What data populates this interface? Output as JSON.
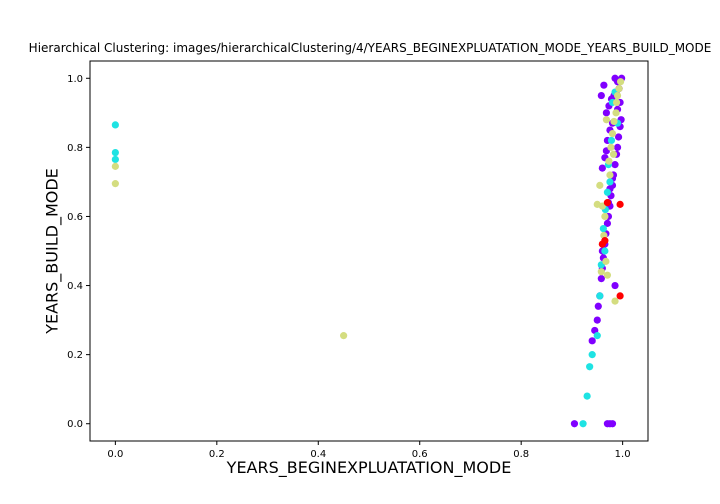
{
  "chart_data": {
    "type": "scatter",
    "title": "Hierarchical Clustering: images/hierarchicalClustering/4/YEARS_BEGINEXPLUATATION_MODE_YEARS_BUILD_MODE",
    "xlabel": "YEARS_BEGINEXPLUATATION_MODE",
    "ylabel": "YEARS_BUILD_MODE",
    "xlim": [
      -0.05,
      1.05
    ],
    "ylim": [
      -0.05,
      1.05
    ],
    "xticks": [
      "0.0",
      "0.2",
      "0.4",
      "0.6",
      "0.8",
      "1.0"
    ],
    "yticks": [
      "0.0",
      "0.2",
      "0.4",
      "0.6",
      "0.8",
      "1.0"
    ],
    "grid": false,
    "series": [
      {
        "color": "#8000ff",
        "x": [
          0.905,
          0.97,
          0.975,
          0.98,
          0.94,
          0.945,
          0.95,
          0.952,
          0.955,
          0.958,
          0.96,
          0.962,
          0.965,
          0.967,
          0.97,
          0.972,
          0.975,
          0.977,
          0.98,
          0.982,
          0.985,
          0.988,
          0.99,
          0.992,
          0.995,
          0.997,
          0.968,
          0.973,
          0.978,
          0.983,
          0.987,
          0.993,
          0.963,
          0.958,
          0.99,
          0.985,
          0.96,
          0.965,
          0.97,
          0.975,
          0.98,
          0.99,
          0.995,
          0.998,
          0.975,
          0.98,
          0.96,
          0.985,
          0.972,
          0.968
        ],
        "y": [
          0.0,
          0.0,
          0.0,
          0.0,
          0.24,
          0.27,
          0.3,
          0.34,
          0.37,
          0.42,
          0.45,
          0.48,
          0.52,
          0.55,
          0.58,
          0.6,
          0.63,
          0.66,
          0.69,
          0.72,
          0.75,
          0.78,
          0.8,
          0.83,
          0.86,
          0.88,
          0.9,
          0.92,
          0.94,
          0.95,
          0.96,
          0.97,
          0.98,
          0.95,
          0.99,
          1.0,
          0.74,
          0.77,
          0.82,
          0.85,
          0.87,
          0.91,
          0.93,
          1.0,
          0.68,
          0.71,
          0.5,
          0.4,
          0.64,
          0.79
        ]
      },
      {
        "color": "#1ee3e3",
        "x": [
          0.0,
          0.0,
          0.0,
          0.922,
          0.93,
          0.935,
          0.94,
          0.95,
          0.955,
          0.958,
          0.962,
          0.966,
          0.97,
          0.975,
          0.98,
          0.985,
          0.99,
          0.965,
          0.972,
          0.978
        ],
        "y": [
          0.865,
          0.785,
          0.765,
          0.0,
          0.08,
          0.165,
          0.2,
          0.255,
          0.37,
          0.46,
          0.565,
          0.62,
          0.67,
          0.7,
          0.93,
          0.96,
          0.87,
          0.5,
          0.75,
          0.82
        ]
      },
      {
        "color": "#d4dd80",
        "x": [
          0.0,
          0.0,
          0.45,
          0.985,
          0.95,
          0.955,
          0.96,
          0.963,
          0.967,
          0.97,
          0.973,
          0.977,
          0.98,
          0.983,
          0.987,
          0.99,
          0.993,
          0.996,
          0.958,
          0.965,
          0.975,
          0.982,
          0.988,
          0.968
        ],
        "y": [
          0.745,
          0.695,
          0.255,
          0.355,
          0.635,
          0.69,
          0.63,
          0.545,
          0.47,
          0.43,
          0.76,
          0.8,
          0.84,
          0.875,
          0.9,
          0.95,
          0.97,
          0.99,
          0.44,
          0.6,
          0.72,
          0.78,
          0.93,
          0.88
        ]
      },
      {
        "color": "#ff0000",
        "x": [
          0.995,
          0.995,
          0.97,
          0.965,
          0.96
        ],
        "y": [
          0.635,
          0.37,
          0.64,
          0.53,
          0.52
        ]
      }
    ]
  }
}
